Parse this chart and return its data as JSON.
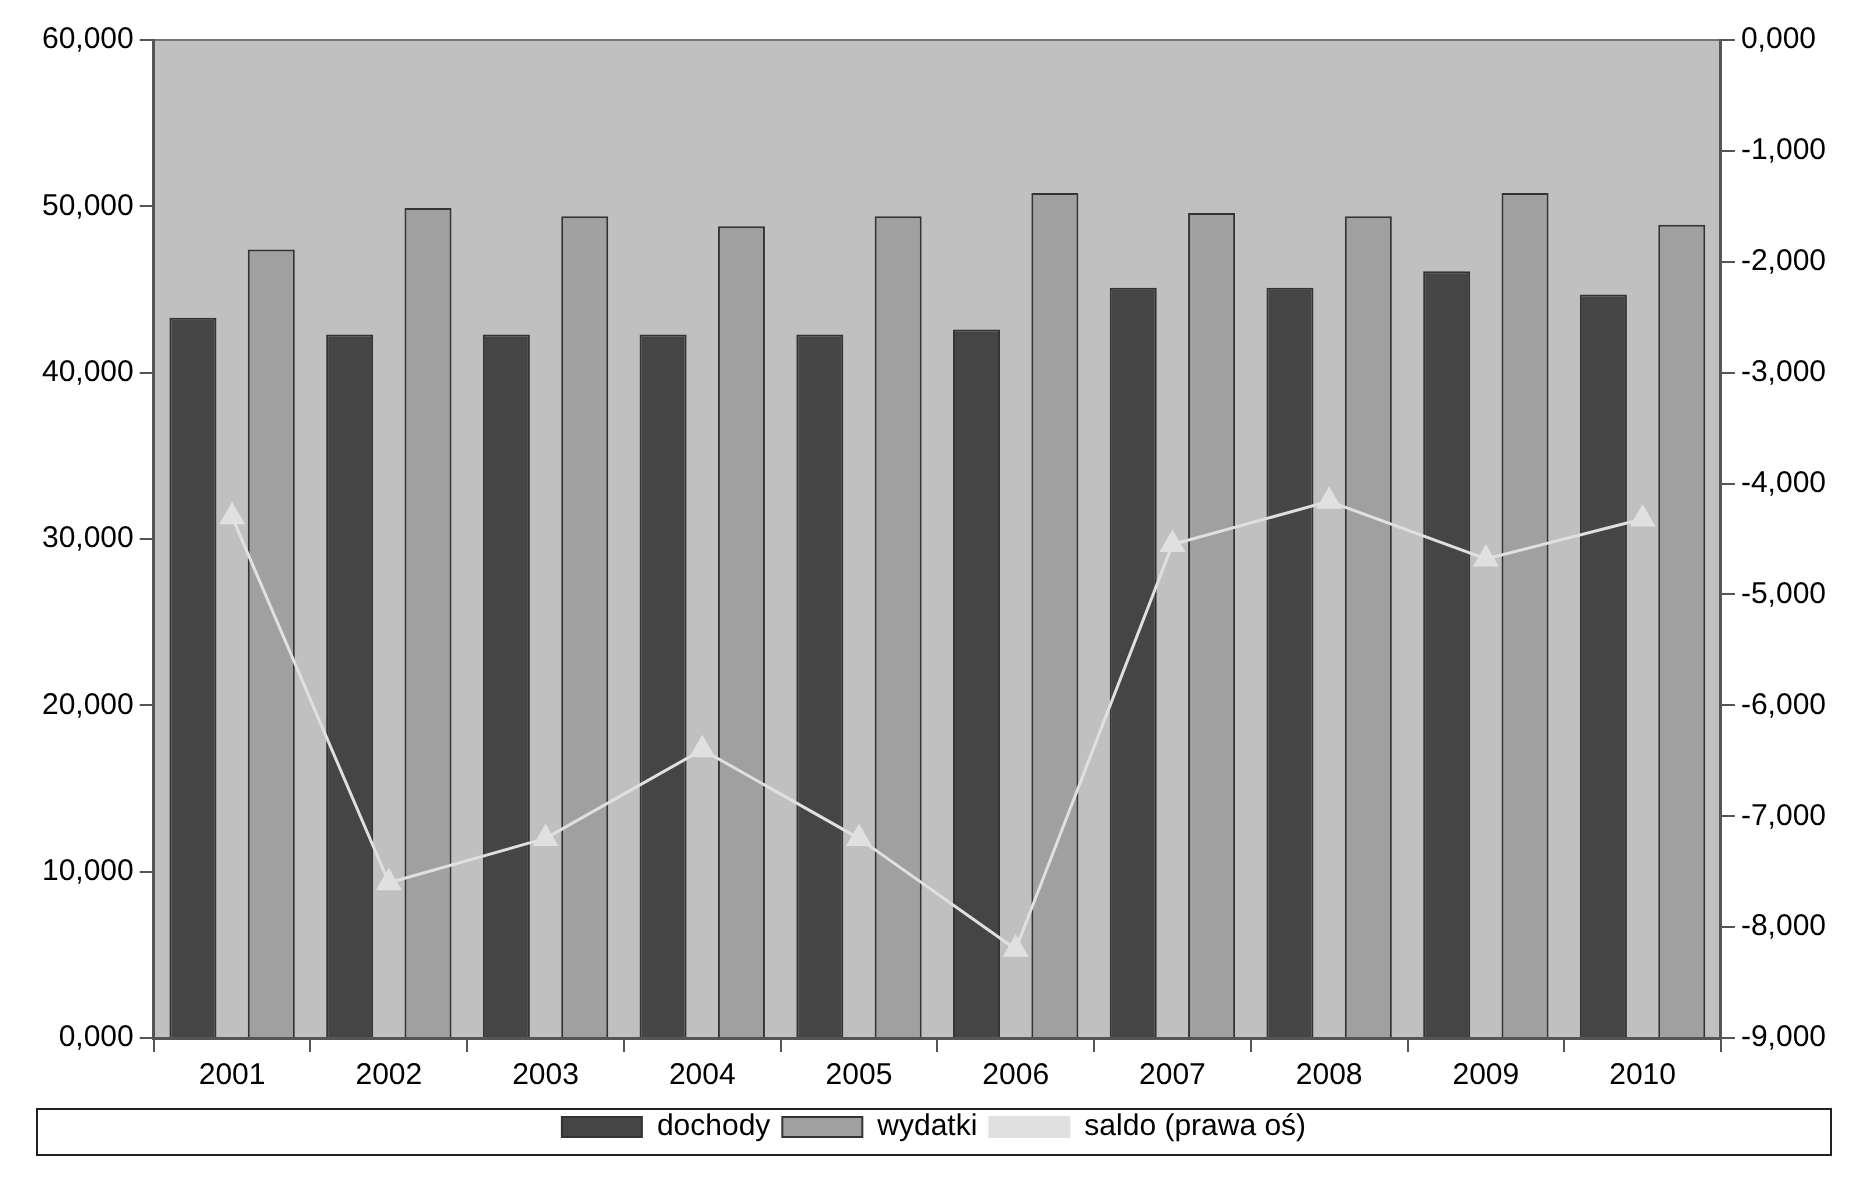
{
  "chart_data": {
    "type": "bar",
    "categories": [
      "2001",
      "2002",
      "2003",
      "2004",
      "2005",
      "2006",
      "2007",
      "2008",
      "2009",
      "2010"
    ],
    "series": [
      {
        "name": "dochody",
        "color": "#454545",
        "values": [
          43.3,
          42.3,
          42.3,
          42.3,
          42.3,
          42.6,
          45.1,
          45.1,
          46.1,
          44.7
        ]
      },
      {
        "name": "wydatki",
        "color": "#a0a0a0",
        "values": [
          47.4,
          49.9,
          49.4,
          48.8,
          49.4,
          50.8,
          49.6,
          49.4,
          50.8,
          48.9
        ]
      },
      {
        "name": "saldo (prawa oś)",
        "type": "line",
        "axis": "y2",
        "color": "#e0e0e0",
        "marker": "triangle",
        "values": [
          -4.3,
          -7.6,
          -7.2,
          -6.4,
          -7.2,
          -8.2,
          -4.55,
          -4.16,
          -4.68,
          -4.32
        ]
      }
    ],
    "ylim": [
      0,
      60
    ],
    "yticks": [
      {
        "value": 0,
        "label": "0,000"
      },
      {
        "value": 10,
        "label": "10,000"
      },
      {
        "value": 20,
        "label": "20,000"
      },
      {
        "value": 30,
        "label": "30,000"
      },
      {
        "value": 40,
        "label": "40,000"
      },
      {
        "value": 50,
        "label": "50,000"
      },
      {
        "value": 60,
        "label": "60,000"
      }
    ],
    "y2lim": [
      -9,
      0
    ],
    "y2ticks": [
      {
        "value": -9,
        "label": "-9,000"
      },
      {
        "value": -8,
        "label": "-8,000"
      },
      {
        "value": -7,
        "label": "-7,000"
      },
      {
        "value": -6,
        "label": "-6,000"
      },
      {
        "value": -5,
        "label": "-5,000"
      },
      {
        "value": -4,
        "label": "-4,000"
      },
      {
        "value": -3,
        "label": "-3,000"
      },
      {
        "value": -2,
        "label": "-2,000"
      },
      {
        "value": -1,
        "label": "-1,000"
      },
      {
        "value": 0,
        "label": "0,000"
      }
    ],
    "grid": false,
    "legend": "bottom"
  }
}
